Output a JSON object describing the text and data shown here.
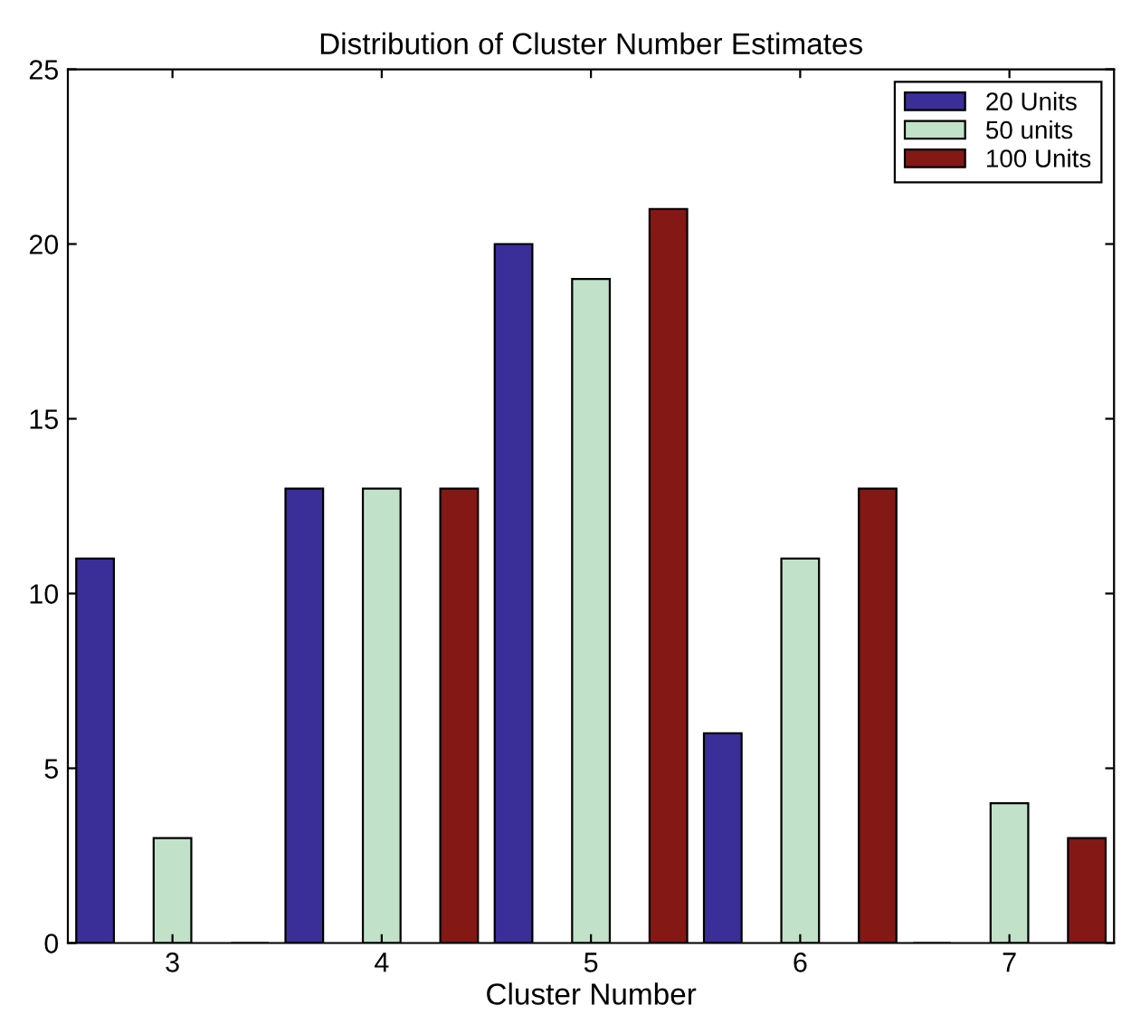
{
  "chart_data": {
    "type": "bar",
    "title": "Distribution of Cluster Number Estimates",
    "xlabel": "Cluster Number",
    "categories": [
      "3",
      "4",
      "5",
      "6",
      "7"
    ],
    "series": [
      {
        "name": "20 Units",
        "color": "#3a2e98",
        "values": [
          11,
          13,
          20,
          6,
          0
        ]
      },
      {
        "name": "50 units",
        "color": "#c1e2c9",
        "values": [
          3,
          13,
          19,
          11,
          4
        ]
      },
      {
        "name": "100 Units",
        "color": "#831815",
        "values": [
          0,
          13,
          21,
          13,
          3
        ]
      }
    ],
    "ylim": [
      0,
      25
    ],
    "yticks": [
      0,
      5,
      10,
      15,
      20,
      25
    ],
    "grid": false,
    "legend": "top right"
  }
}
